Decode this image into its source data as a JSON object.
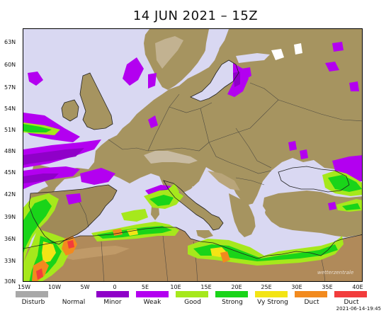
{
  "title": "14 JUN 2021 – 15Z",
  "timestamp": "2021-06-14-19:45",
  "watermark": "wetterzentrale",
  "lat_labels": [
    "63N",
    "60N",
    "57N",
    "54N",
    "51N",
    "48N",
    "45N",
    "42N",
    "39N",
    "36N",
    "33N",
    "30N"
  ],
  "lon_labels": [
    "15W",
    "10W",
    "5W",
    "0",
    "5E",
    "10E",
    "15E",
    "20E",
    "25E",
    "30E",
    "35E",
    "40E"
  ],
  "legend": [
    {
      "label": "Disturb",
      "color": "#a8a8a8"
    },
    {
      "label": "Normal",
      "color": "#ffffff"
    },
    {
      "label": "Minor",
      "color": "#8f00c8"
    },
    {
      "label": "Weak",
      "color": "#b300f0"
    },
    {
      "label": "Good",
      "color": "#a6e81c"
    },
    {
      "label": "Strong",
      "color": "#19d419"
    },
    {
      "label": "Vy Strong",
      "color": "#f3e415"
    },
    {
      "label": "Duct",
      "color": "#f28a1e"
    },
    {
      "label": "Duct",
      "color": "#f23c3c"
    }
  ]
}
